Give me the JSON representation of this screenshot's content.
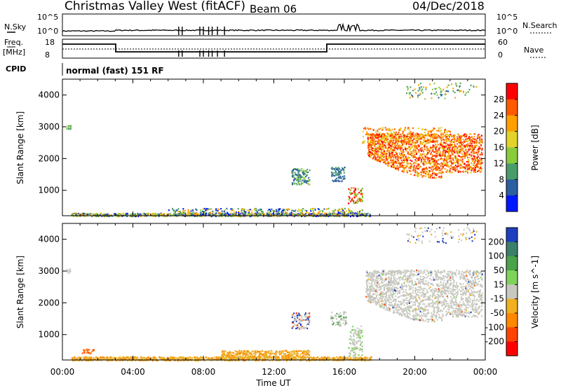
{
  "header": {
    "title": "Christmas Valley West (fitACF)",
    "beam": "Beam 06",
    "date": "04/Dec/2018"
  },
  "top_panels": {
    "nsky_label": "N.Sky",
    "nsearch_label": "N.Search",
    "nsky_ticks": [
      "10^5",
      "10^0"
    ],
    "nsearch_ticks": [
      "10^5",
      "10^0"
    ],
    "freq_label_1": "Freq.",
    "freq_label_2": "[MHz]",
    "freq_ticks": [
      "18",
      "8"
    ],
    "nave_label": "Nave",
    "nave_ticks": [
      "60",
      "0"
    ],
    "cpid_label": "CPID",
    "cpid_text": "normal (fast) 151 RF"
  },
  "chart_data": [
    {
      "type": "heatmap",
      "name": "power-panel",
      "ylabel": "Slant Range [km]",
      "xlabel": "",
      "yticks": [
        1000,
        2000,
        3000,
        4000
      ],
      "ylim": [
        200,
        4500
      ],
      "xlim_hours": [
        0,
        24
      ],
      "colorbar": {
        "label": "Power [dB]",
        "ticks": [
          "28",
          "24",
          "20",
          "16",
          "12",
          "8",
          "4"
        ],
        "colors": [
          "#ff0000",
          "#ff5a00",
          "#ff9f00",
          "#e2d22a",
          "#8acb3c",
          "#4a9d6b",
          "#2a5fa0",
          "#0018ff"
        ]
      }
    },
    {
      "type": "heatmap",
      "name": "velocity-panel",
      "ylabel": "Slant Range [km]",
      "xlabel": "Time UT",
      "yticks": [
        1000,
        2000,
        3000,
        4000
      ],
      "ylim": [
        200,
        4500
      ],
      "xlim_hours": [
        0,
        24
      ],
      "xticks": [
        "00:00",
        "04:00",
        "08:00",
        "12:00",
        "16:00",
        "20:00",
        "00:00"
      ],
      "colorbar": {
        "label": "Velocity [m s^-1]",
        "ticks": [
          "200",
          "100",
          "50",
          "15",
          "-15",
          "-50",
          "-100",
          "-200"
        ],
        "colors": [
          "#1e3fbf",
          "#3a7f6a",
          "#4aa24a",
          "#7fd35a",
          "#c8c8c0",
          "#f0b020",
          "#ff8800",
          "#ff4400",
          "#ff0000"
        ]
      }
    }
  ]
}
